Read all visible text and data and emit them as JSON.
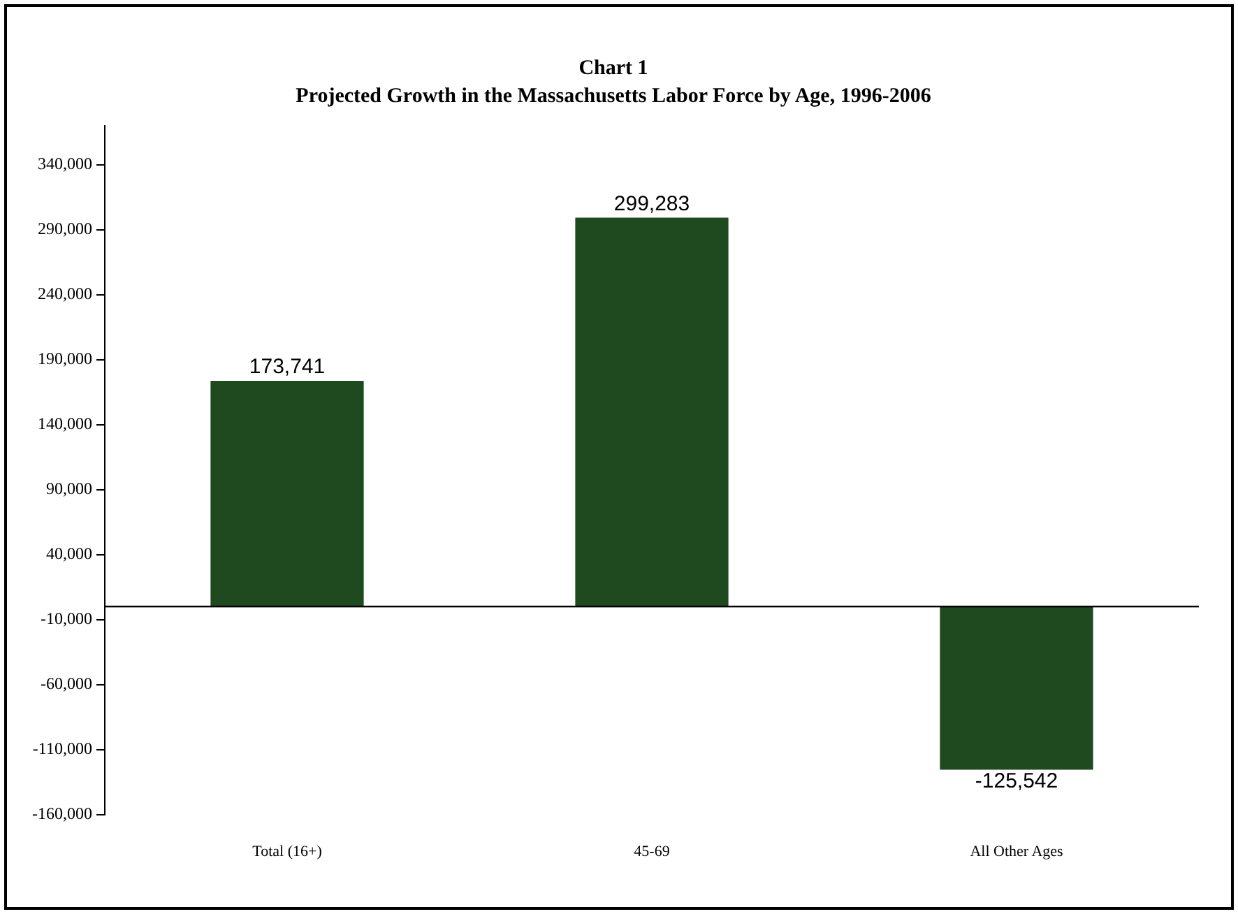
{
  "chart_data": {
    "type": "bar",
    "title": "Chart 1",
    "subtitle": "Projected Growth in the Massachusetts Labor Force by Age, 1996-2006",
    "categories": [
      "Total (16+)",
      "45-69",
      "All Other Ages"
    ],
    "values": [
      173741,
      299283,
      -125542
    ],
    "color": "#1f4a1f",
    "value_labels": [
      "173,741",
      "299,283",
      "-125,542"
    ],
    "ylim": [
      -160000,
      370000
    ],
    "yticks": [
      {
        "value": -160000,
        "label": "-160,000"
      },
      {
        "value": -110000,
        "label": "-110,000"
      },
      {
        "value": -60000,
        "label": "-60,000"
      },
      {
        "value": -10000,
        "label": "-10,000"
      },
      {
        "value": 40000,
        "label": "40,000"
      },
      {
        "value": 90000,
        "label": "90,000"
      },
      {
        "value": 140000,
        "label": "140,000"
      },
      {
        "value": 190000,
        "label": "190,000"
      },
      {
        "value": 240000,
        "label": "240,000"
      },
      {
        "value": 290000,
        "label": "290,000"
      },
      {
        "value": 340000,
        "label": "340,000"
      }
    ],
    "grid": false,
    "legend": false
  }
}
